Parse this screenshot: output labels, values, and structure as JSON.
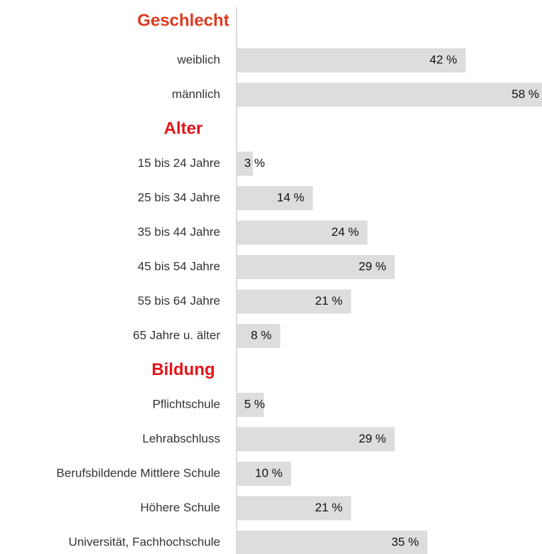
{
  "chart_data": {
    "type": "bar",
    "color": "#dddddd",
    "xlim": [
      0,
      56
    ],
    "groups": [
      {
        "name": "Geschlecht",
        "color": "#dc3a1e",
        "categories": [
          "weiblich",
          "männlich"
        ],
        "values": [
          42,
          58
        ],
        "value_labels": [
          "42 %",
          "58 %"
        ]
      },
      {
        "name": "Alter",
        "color": "#e3141b",
        "categories": [
          "15 bis 24 Jahre",
          "25 bis 34 Jahre",
          "35 bis 44 Jahre",
          "45 bis 54 Jahre",
          "55 bis 64 Jahre",
          "65 Jahre u. älter"
        ],
        "values": [
          3,
          14,
          24,
          29,
          21,
          8
        ],
        "value_labels": [
          "3 %",
          "14 %",
          "24 %",
          "29 %",
          "21 %",
          "8 %"
        ]
      },
      {
        "name": "Bildung",
        "color": "#e3141b",
        "categories": [
          "Pflichtschule",
          "Lehrabschluss",
          "Berufsbildende Mittlere Schule",
          "Höhere Schule",
          "Universität, Fachhochschule"
        ],
        "values": [
          5,
          29,
          10,
          21,
          35
        ],
        "value_labels": [
          "5 %",
          "29 %",
          "10 %",
          "21 %",
          "35 %"
        ]
      }
    ]
  }
}
